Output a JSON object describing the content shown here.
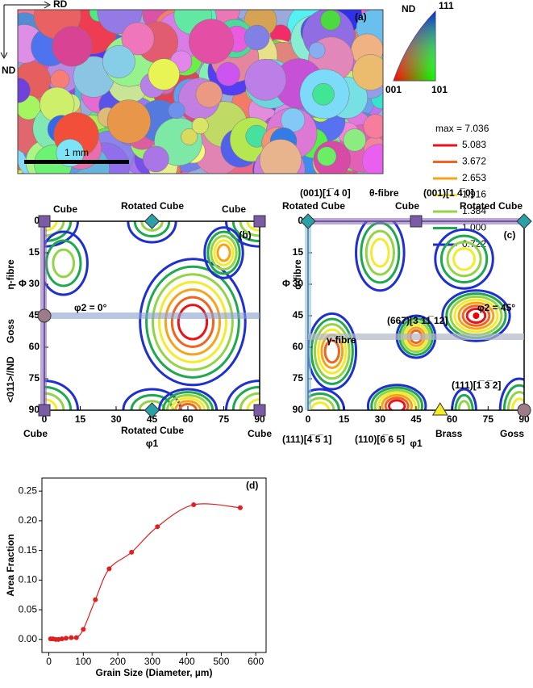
{
  "panel_a": {
    "label": "(a)",
    "rd": "RD",
    "nd": "ND",
    "scale_bar": "1 mm"
  },
  "ipf_key": {
    "nd": "ND",
    "c111": "111",
    "c001": "001",
    "c101": "101"
  },
  "contour_legend": {
    "max": "max = 7.036",
    "levels": [
      {
        "label": "5.083",
        "color": "#e8141b"
      },
      {
        "label": "3.672",
        "color": "#f0641e"
      },
      {
        "label": "2.653",
        "color": "#f7a21b"
      },
      {
        "label": "1.916",
        "color": "#f2ec2a"
      },
      {
        "label": "1.384",
        "color": "#93d446"
      },
      {
        "label": "1.000",
        "color": "#1fa84f"
      },
      {
        "label": "0.722",
        "color": "#1f2fd0"
      }
    ]
  },
  "panel_b": {
    "label": "(b)",
    "x_label": "φ1",
    "y_label": "Φ",
    "ticks": [
      0,
      15,
      30,
      45,
      60,
      75,
      90
    ],
    "top_left": "Cube",
    "top_mid": "Rotated Cube",
    "top_right": "Cube",
    "fibre": "η-fibre",
    "phi2": "φ2 = 0°",
    "goss": "Goss",
    "nd": "<011>//ND",
    "bot_left": "Cube",
    "bot_mid": "Rotated Cube",
    "bot_right": "Cube"
  },
  "panel_c": {
    "label": "(c)",
    "x_label": "φ1",
    "y_label": "Φ",
    "ticks": [
      0,
      15,
      30,
      45,
      60,
      75,
      90
    ],
    "top_a": "(001)[1̅ 4 0]",
    "theta": "θ-fibre",
    "top_b": "(001)[1 4̅ 0]",
    "top_left": "Rotated Cube",
    "top_mid": "Cube",
    "top_right": "Rotated Cube",
    "alpha": "α-fibre",
    "gamma": "γ-fibre",
    "c667": "(667)[3̅ 11̅ 12]",
    "phi2": "φ2 = 45°",
    "c111_132": "(111)[1̅ 3̅ 2]",
    "c111_451": "(111)[4̅ 5̅ 1]",
    "c110": "(110)[6̅ 6 5]",
    "brass": "Brass",
    "goss": "Goss"
  },
  "chart_data": {
    "type": "line",
    "label": "(d)",
    "x_label": "Grain Size (Diameter, µm)",
    "y_label": "Area Fraction",
    "color": "#e02020",
    "x": [
      5,
      12,
      20,
      28,
      38,
      50,
      65,
      80,
      100,
      135,
      175,
      240,
      315,
      420,
      555
    ],
    "values": [
      0.001,
      0.001,
      0.0,
      0.0,
      0.001,
      0.002,
      0.003,
      0.003,
      0.017,
      0.067,
      0.119,
      0.147,
      0.19,
      0.227,
      0.222
    ],
    "xlim": [
      -20,
      630
    ],
    "xticks": [
      0,
      100,
      200,
      300,
      400,
      500,
      600
    ],
    "ylim": [
      -0.022,
      0.272
    ],
    "yticks": [
      {
        "value": 0,
        "label": "0.00"
      },
      {
        "value": 0.05,
        "label": "0.05"
      },
      {
        "value": 0.1,
        "label": "0.10"
      },
      {
        "value": 0.15,
        "label": "0.15"
      },
      {
        "value": 0.2,
        "label": "0.20"
      },
      {
        "value": 0.25,
        "label": "0.25"
      }
    ]
  }
}
